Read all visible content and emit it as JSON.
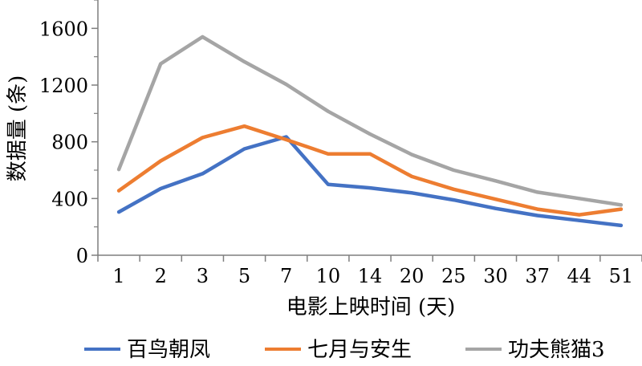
{
  "chart_data": {
    "type": "line",
    "title": "",
    "xlabel": "电影上映时间 (天)",
    "ylabel": "数据量 (条)",
    "categories": [
      "1",
      "2",
      "3",
      "5",
      "7",
      "10",
      "14",
      "20",
      "25",
      "30",
      "37",
      "44",
      "51"
    ],
    "ylim": [
      0,
      1800
    ],
    "yticks": [
      0,
      400,
      800,
      1200,
      1600
    ],
    "grid": false,
    "legend_position": "bottom",
    "series": [
      {
        "name": "百鸟朝凤",
        "color": "#4472C4",
        "values": [
          305,
          470,
          575,
          750,
          835,
          500,
          475,
          440,
          390,
          330,
          280,
          245,
          210
        ]
      },
      {
        "name": "七月与安生",
        "color": "#ED7D31",
        "values": [
          455,
          665,
          830,
          910,
          815,
          715,
          715,
          555,
          465,
          395,
          325,
          285,
          325
        ]
      },
      {
        "name": "功夫熊猫3",
        "color": "#A5A5A5",
        "values": [
          605,
          1350,
          1540,
          1365,
          1205,
          1015,
          855,
          710,
          600,
          525,
          445,
          400,
          355
        ]
      }
    ]
  }
}
